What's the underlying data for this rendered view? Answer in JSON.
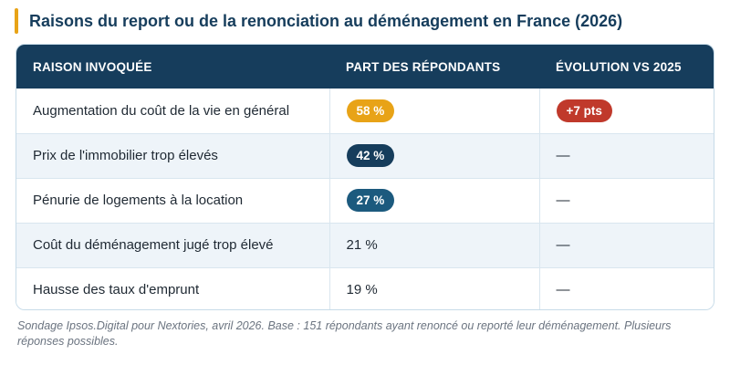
{
  "title": "Raisons du report ou de la renonciation au déménagement en France (2026)",
  "colors": {
    "accent_bar": "#e8a317",
    "header_bg": "#163d5c",
    "pill_orange": "#e8a317",
    "pill_navy": "#163d5c",
    "pill_teal": "#1c5a7e",
    "pill_red": "#c0392b"
  },
  "table": {
    "headers": {
      "reason": "RAISON INVOQUÉE",
      "share": "PART DES RÉPONDANTS",
      "change": "ÉVOLUTION VS 2025"
    },
    "rows": [
      {
        "reason": "Augmentation du coût de la vie en général",
        "share": "58 %",
        "share_style": "pill",
        "share_color": "#e8a317",
        "change": "+7 pts",
        "change_style": "pill",
        "change_color": "#c0392b"
      },
      {
        "reason": "Prix de l'immobilier trop élevés",
        "share": "42 %",
        "share_style": "pill",
        "share_color": "#163d5c",
        "change": "—",
        "change_style": "plain"
      },
      {
        "reason": "Pénurie de logements à la location",
        "share": "27 %",
        "share_style": "pill",
        "share_color": "#1c5a7e",
        "change": "—",
        "change_style": "plain"
      },
      {
        "reason": "Coût du déménagement jugé trop élevé",
        "share": "21 %",
        "share_style": "plain",
        "change": "—",
        "change_style": "plain"
      },
      {
        "reason": "Hausse des taux d'emprunt",
        "share": "19 %",
        "share_style": "plain",
        "change": "—",
        "change_style": "plain"
      }
    ]
  },
  "footnote": "Sondage Ipsos.Digital pour Nextories, avril 2026. Base : 151 répondants ayant renoncé ou reporté leur déménagement. Plusieurs réponses possibles."
}
